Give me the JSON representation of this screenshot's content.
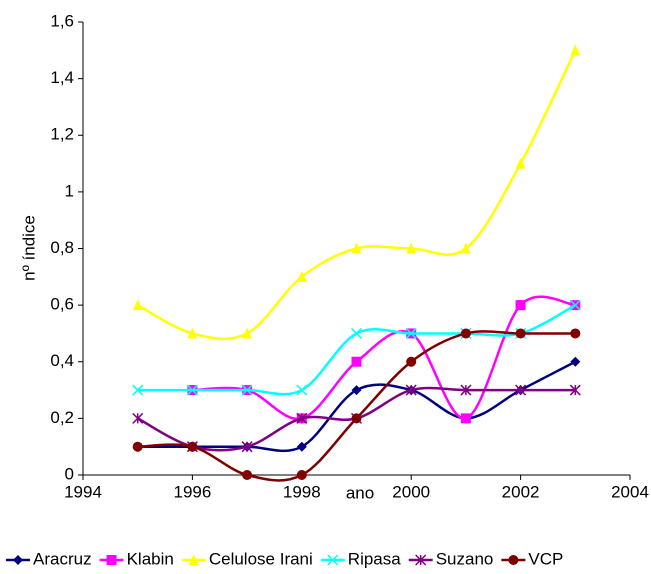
{
  "chart_data": {
    "type": "line",
    "x_label": "ano",
    "y_label": "nº índice",
    "x": [
      1995,
      1996,
      1997,
      1998,
      1999,
      2000,
      2001,
      2002,
      2003
    ],
    "series": [
      {
        "name": "Aracruz",
        "color": "#000080",
        "marker": "diamond",
        "values": [
          0.1,
          0.1,
          0.1,
          0.1,
          0.3,
          0.3,
          0.2,
          0.3,
          0.4
        ]
      },
      {
        "name": "Klabin",
        "color": "#ff00ff",
        "marker": "square",
        "values": [
          null,
          0.3,
          0.3,
          0.2,
          0.4,
          0.5,
          0.2,
          0.6,
          0.6
        ]
      },
      {
        "name": "Celulose Irani",
        "color": "#ffff00",
        "marker": "triangle",
        "values": [
          0.6,
          0.5,
          0.5,
          0.7,
          0.8,
          0.8,
          0.8,
          1.1,
          1.5
        ]
      },
      {
        "name": "Ripasa",
        "color": "#00ffff",
        "marker": "x",
        "values": [
          0.3,
          0.3,
          0.3,
          0.3,
          0.5,
          0.5,
          0.5,
          0.5,
          0.6
        ]
      },
      {
        "name": "Suzano",
        "color": "#800080",
        "marker": "star",
        "values": [
          0.2,
          0.1,
          0.1,
          0.2,
          0.2,
          0.3,
          0.3,
          0.3,
          0.3
        ]
      },
      {
        "name": "VCP",
        "color": "#800000",
        "marker": "circle",
        "values": [
          0.1,
          0.1,
          0,
          0,
          0.2,
          0.4,
          0.5,
          0.5,
          0.5
        ]
      }
    ],
    "xlim": [
      1994,
      2004
    ],
    "xticks": [
      1994,
      1996,
      1998,
      2000,
      2002,
      2004
    ],
    "ylim": [
      0,
      1.6
    ],
    "yticks": [
      0,
      {
        "value": 0.2,
        "label": "0,2"
      },
      {
        "value": 0.4,
        "label": "0,4"
      },
      {
        "value": 0.6,
        "label": "0,6"
      },
      {
        "value": 0.8,
        "label": "0,8"
      },
      1,
      {
        "value": 1.2,
        "label": "1,2"
      },
      {
        "value": 1.4,
        "label": "1,4"
      },
      {
        "value": 1.6,
        "label": "1,6"
      }
    ],
    "smooth": true,
    "legend": "bottom"
  }
}
